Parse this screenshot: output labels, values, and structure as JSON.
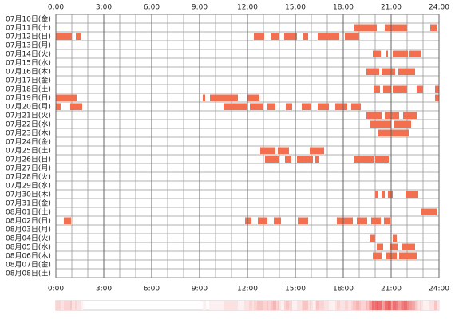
{
  "chart_data": {
    "type": "timeline",
    "xlim": [
      0,
      24
    ],
    "xticks": [
      {
        "value": 0,
        "label": "0:00"
      },
      {
        "value": 3,
        "label": "3:00"
      },
      {
        "value": 6,
        "label": "6:00"
      },
      {
        "value": 9,
        "label": "9:00"
      },
      {
        "value": 12,
        "label": "12:00"
      },
      {
        "value": 15,
        "label": "15:00"
      },
      {
        "value": 18,
        "label": "18:00"
      },
      {
        "value": 21,
        "label": "21:00"
      },
      {
        "value": 24,
        "label": "24:00"
      }
    ],
    "color": "#f2704f",
    "grid": true,
    "rows": [
      {
        "label": "07月10日(金)",
        "segments": []
      },
      {
        "label": "07月11日(土)",
        "segments": [
          [
            18.65,
            20.1
          ],
          [
            20.6,
            22.0
          ],
          [
            23.45,
            23.9
          ]
        ]
      },
      {
        "label": "07月12日(日)",
        "segments": [
          [
            0,
            1.0
          ],
          [
            1.25,
            1.6
          ],
          [
            12.4,
            13.05
          ],
          [
            13.5,
            14.0
          ],
          [
            14.3,
            15.1
          ],
          [
            15.5,
            15.8
          ],
          [
            16.4,
            17.75
          ],
          [
            18.1,
            19.0
          ]
        ]
      },
      {
        "label": "07月13日(月)",
        "segments": []
      },
      {
        "label": "07月14日(火)",
        "segments": [
          [
            19.85,
            20.35
          ],
          [
            20.65,
            20.8
          ],
          [
            21.1,
            22.05
          ],
          [
            22.15,
            22.9
          ]
        ]
      },
      {
        "label": "07月15日(水)",
        "segments": []
      },
      {
        "label": "07月16日(木)",
        "segments": [
          [
            19.45,
            20.25
          ],
          [
            20.4,
            21.25
          ],
          [
            21.45,
            22.5
          ]
        ]
      },
      {
        "label": "07月17日(金)",
        "segments": []
      },
      {
        "label": "07月18日(土)",
        "segments": [
          [
            19.9,
            20.3
          ],
          [
            20.5,
            21.0
          ],
          [
            21.1,
            22.0
          ],
          [
            22.6,
            23.0
          ],
          [
            23.75,
            24.0
          ]
        ]
      },
      {
        "label": "07月19日(日)",
        "segments": [
          [
            0,
            1.3
          ],
          [
            9.2,
            9.35
          ],
          [
            9.65,
            11.4
          ],
          [
            12.0,
            12.75
          ],
          [
            23.75,
            24.0
          ]
        ]
      },
      {
        "label": "07月20日(月)",
        "segments": [
          [
            0,
            0.3
          ],
          [
            0.9,
            1.65
          ],
          [
            10.5,
            12.0
          ],
          [
            12.15,
            13.0
          ],
          [
            13.25,
            13.75
          ],
          [
            14.4,
            14.8
          ],
          [
            15.4,
            16.0
          ],
          [
            16.4,
            17.1
          ],
          [
            17.5,
            18.25
          ],
          [
            18.5,
            19.1
          ]
        ]
      },
      {
        "label": "07月21日(火)",
        "segments": [
          [
            19.45,
            20.4
          ],
          [
            20.6,
            21.5
          ],
          [
            21.75,
            22.6
          ]
        ]
      },
      {
        "label": "07月22日(水)",
        "segments": [
          [
            19.65,
            21.0
          ],
          [
            21.2,
            22.25
          ]
        ]
      },
      {
        "label": "07月23日(木)",
        "segments": [
          [
            20.15,
            22.1
          ]
        ]
      },
      {
        "label": "07月24日(金)",
        "segments": []
      },
      {
        "label": "07月25日(土)",
        "segments": [
          [
            12.8,
            13.75
          ],
          [
            13.9,
            14.6
          ],
          [
            15.9,
            16.8
          ]
        ]
      },
      {
        "label": "07月26日(日)",
        "segments": [
          [
            13.1,
            14.0
          ],
          [
            14.35,
            14.75
          ],
          [
            15.1,
            16.1
          ],
          [
            16.25,
            16.5
          ],
          [
            18.65,
            19.9
          ],
          [
            20.0,
            20.85
          ]
        ]
      },
      {
        "label": "07月27日(月)",
        "segments": []
      },
      {
        "label": "07月28日(火)",
        "segments": []
      },
      {
        "label": "07月29日(水)",
        "segments": []
      },
      {
        "label": "07月30日(木)",
        "segments": [
          [
            20.0,
            20.15
          ],
          [
            20.4,
            20.6
          ],
          [
            20.8,
            21.1
          ],
          [
            21.9,
            22.7
          ]
        ]
      },
      {
        "label": "07月31日(金)",
        "segments": []
      },
      {
        "label": "08月01日(土)",
        "segments": [
          [
            22.9,
            23.85
          ]
        ]
      },
      {
        "label": "08月02日(日)",
        "segments": [
          [
            0.5,
            0.95
          ],
          [
            11.85,
            12.25
          ],
          [
            12.65,
            13.25
          ],
          [
            13.65,
            14.1
          ],
          [
            15.15,
            15.8
          ],
          [
            17.6,
            18.6
          ],
          [
            18.85,
            19.5
          ],
          [
            19.75,
            20.35
          ],
          [
            20.55,
            20.95
          ]
        ]
      },
      {
        "label": "08月03日(月)",
        "segments": []
      },
      {
        "label": "08月04日(火)",
        "segments": [
          [
            19.65,
            20.0
          ],
          [
            21.1,
            21.35
          ]
        ]
      },
      {
        "label": "08月05日(水)",
        "segments": [
          [
            20.1,
            20.5
          ],
          [
            20.9,
            21.4
          ],
          [
            21.65,
            22.5
          ]
        ]
      },
      {
        "label": "08月06日(木)",
        "segments": [
          [
            19.85,
            20.4
          ],
          [
            20.7,
            21.35
          ],
          [
            21.5,
            22.6
          ]
        ]
      },
      {
        "label": "08月07日(金)",
        "segments": []
      },
      {
        "label": "08月08日(土)",
        "segments": []
      }
    ]
  }
}
